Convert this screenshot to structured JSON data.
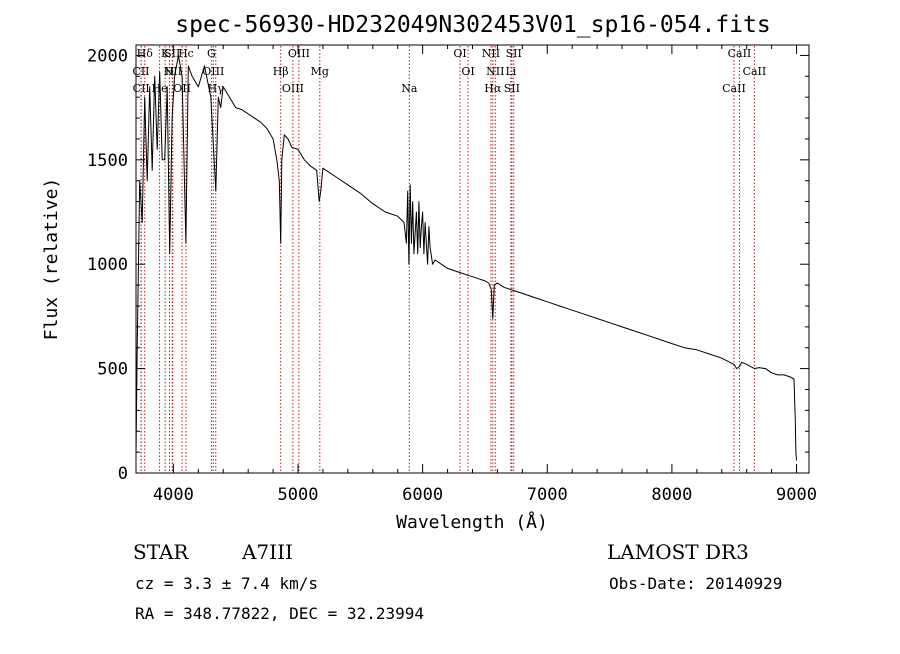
{
  "chart_data": {
    "type": "line",
    "title": "spec-56930-HD232049N302453V01_sp16-054.fits",
    "xlabel": "Wavelength (Å)",
    "ylabel": "Flux (relative)",
    "xlim": [
      3700,
      9100
    ],
    "ylim": [
      0,
      2050
    ],
    "xticks": [
      4000,
      5000,
      6000,
      7000,
      8000,
      9000
    ],
    "yticks": [
      0,
      500,
      1000,
      1500,
      2000
    ],
    "grid": false,
    "series": [
      {
        "name": "flux",
        "x": [
          3700,
          3710,
          3730,
          3750,
          3770,
          3790,
          3810,
          3830,
          3850,
          3870,
          3890,
          3910,
          3930,
          3950,
          3970,
          3990,
          4010,
          4040,
          4070,
          4100,
          4120,
          4150,
          4200,
          4250,
          4300,
          4340,
          4360,
          4380,
          4400,
          4450,
          4500,
          4550,
          4600,
          4650,
          4700,
          4750,
          4800,
          4830,
          4850,
          4861,
          4870,
          4890,
          4920,
          4950,
          5000,
          5050,
          5100,
          5150,
          5170,
          5183,
          5200,
          5250,
          5300,
          5400,
          5500,
          5600,
          5700,
          5800,
          5850,
          5870,
          5880,
          5890,
          5900,
          5910,
          5920,
          5930,
          5950,
          5960,
          5970,
          5980,
          5990,
          6000,
          6010,
          6020,
          6040,
          6050,
          6060,
          6080,
          6100,
          6150,
          6200,
          6250,
          6300,
          6350,
          6400,
          6450,
          6500,
          6530,
          6550,
          6563,
          6575,
          6600,
          6650,
          6700,
          6750,
          6800,
          6900,
          7000,
          7100,
          7200,
          7300,
          7400,
          7500,
          7600,
          7700,
          7800,
          7900,
          8000,
          8100,
          8200,
          8300,
          8400,
          8498,
          8520,
          8542,
          8560,
          8600,
          8662,
          8700,
          8750,
          8800,
          8850,
          8900,
          8950,
          8980,
          8990,
          8995,
          9000
        ],
        "y": [
          80,
          600,
          1400,
          1200,
          1800,
          1400,
          1850,
          1450,
          1900,
          1550,
          1920,
          1500,
          1500,
          1850,
          1050,
          1700,
          1900,
          2000,
          1900,
          1100,
          1950,
          1900,
          1850,
          1950,
          1800,
          1350,
          1800,
          1750,
          1850,
          1800,
          1750,
          1740,
          1720,
          1700,
          1680,
          1650,
          1600,
          1500,
          1400,
          1100,
          1500,
          1620,
          1600,
          1560,
          1550,
          1500,
          1470,
          1450,
          1300,
          1350,
          1460,
          1440,
          1420,
          1380,
          1340,
          1290,
          1250,
          1230,
          1200,
          1100,
          1350,
          1000,
          1380,
          1100,
          1300,
          1050,
          1250,
          1050,
          1300,
          1080,
          1180,
          1250,
          1050,
          1200,
          1000,
          1180,
          1080,
          1000,
          1020,
          1000,
          980,
          970,
          960,
          950,
          940,
          930,
          920,
          910,
          880,
          740,
          900,
          910,
          890,
          880,
          870,
          860,
          840,
          820,
          800,
          780,
          760,
          740,
          720,
          700,
          680,
          660,
          640,
          620,
          600,
          590,
          570,
          550,
          520,
          500,
          510,
          530,
          520,
          500,
          505,
          500,
          480,
          470,
          470,
          460,
          450,
          250,
          100,
          60
        ]
      }
    ],
    "lines": [
      {
        "label": "Hδ",
        "x": 3770
      },
      {
        "label": "CII",
        "x": 3740
      },
      {
        "label": "CII",
        "x": 3742
      },
      {
        "label": "K",
        "x": 3934
      },
      {
        "label": "H",
        "x": 3969
      },
      {
        "label": "He",
        "x": 3889
      },
      {
        "label": "SII",
        "x": 3991
      },
      {
        "label": "NII",
        "x": 3995
      },
      {
        "label": "OII",
        "x": 4070
      },
      {
        "label": "Hc",
        "x": 4101
      },
      {
        "label": "OIII",
        "x": 4320
      },
      {
        "label": "Hγ",
        "x": 4340
      },
      {
        "label": "G",
        "x": 4305
      },
      {
        "label": "Hβ",
        "x": 4861
      },
      {
        "label": "OIII",
        "x": 4959
      },
      {
        "label": "OIII",
        "x": 5007
      },
      {
        "label": "Mg",
        "x": 5175
      },
      {
        "label": "Na",
        "x": 5893
      },
      {
        "label": "OI",
        "x": 6300
      },
      {
        "label": "OI",
        "x": 6364
      },
      {
        "label": "Hα",
        "x": 6563
      },
      {
        "label": "NII",
        "x": 6548
      },
      {
        "label": "NII",
        "x": 6583
      },
      {
        "label": "SII",
        "x": 6716
      },
      {
        "label": "SII",
        "x": 6731
      },
      {
        "label": "Li",
        "x": 6708
      },
      {
        "label": "CaII",
        "x": 8498
      },
      {
        "label": "CaII",
        "x": 8542
      },
      {
        "label": "CaII",
        "x": 8662
      }
    ]
  },
  "info": {
    "object_type": "STAR",
    "subclass": "A7III",
    "survey": "LAMOST DR3",
    "cz": "cz = 3.3 ± 7.4 km/s",
    "obs_date": "Obs-Date: 20140929",
    "coords": "RA = 348.77822, DEC =  32.23994"
  },
  "colors": {
    "spectrum": "#000000",
    "line_marker": "#b22222",
    "axis": "#000000"
  }
}
